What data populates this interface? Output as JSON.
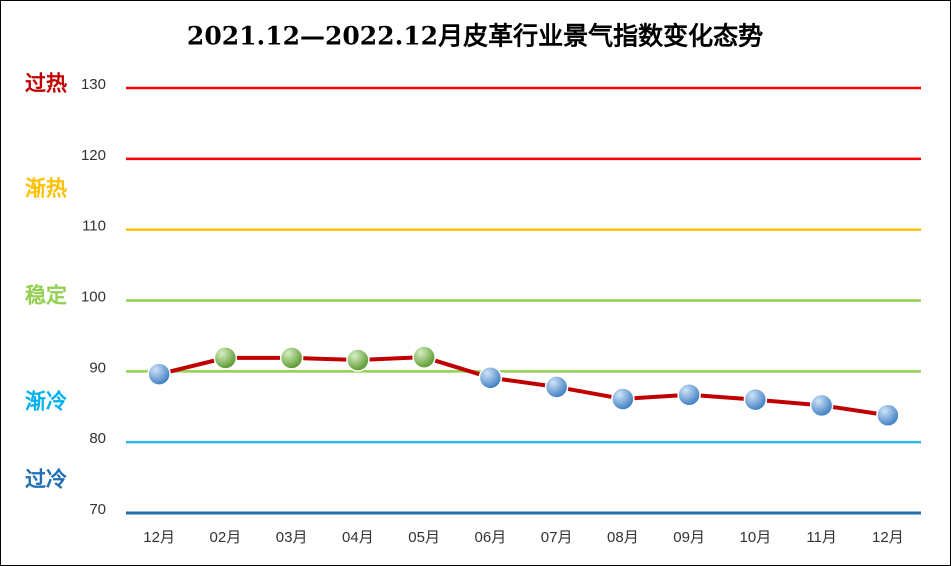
{
  "chart_data": {
    "type": "line",
    "title": "2021.12—2022.12月皮革行业景气指数变化态势",
    "categories": [
      "12月",
      "02月",
      "03月",
      "04月",
      "05月",
      "06月",
      "07月",
      "08月",
      "09月",
      "10月",
      "11月",
      "12月"
    ],
    "series": [
      {
        "color": "#c00000",
        "values": [
          89.6,
          91.9,
          91.9,
          91.6,
          92.0,
          89.1,
          87.8,
          86.1,
          86.7,
          86.0,
          85.2,
          83.8
        ],
        "point_colors": [
          "#5b9bd5",
          "#70ad47",
          "#70ad47",
          "#70ad47",
          "#70ad47",
          "#5b9bd5",
          "#5b9bd5",
          "#5b9bd5",
          "#5b9bd5",
          "#5b9bd5",
          "#5b9bd5",
          "#5b9bd5"
        ]
      }
    ],
    "ylim": [
      70,
      130
    ],
    "yticks": [
      70,
      80,
      90,
      100,
      110,
      120,
      130
    ],
    "grid_colors": [
      "#1f6fb2",
      "#33b5e5",
      "#92d050",
      "#92d050",
      "#ffc000",
      "#ff0000",
      "#ff0000"
    ],
    "zones": [
      {
        "label": "过热",
        "color": "#c00000"
      },
      {
        "label": "渐热",
        "color": "#ffc000"
      },
      {
        "label": "稳定",
        "color": "#92d050"
      },
      {
        "label": "渐冷",
        "color": "#00b0f0"
      },
      {
        "label": "过冷",
        "color": "#1f6fb2"
      }
    ]
  }
}
